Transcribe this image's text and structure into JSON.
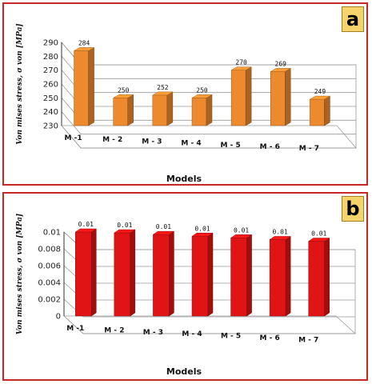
{
  "chart_data": [
    {
      "type": "bar",
      "panel_label": "a",
      "categories": [
        "M -1",
        "M - 2",
        "M - 3",
        "M - 4",
        "M - 5",
        "M - 6",
        "M - 7"
      ],
      "values": [
        284,
        250,
        252,
        250,
        270,
        269,
        249
      ],
      "data_labels": [
        "284",
        "250",
        "252",
        "250",
        "270",
        "269",
        "249"
      ],
      "xlabel": "Models",
      "ylabel": "Von mises stress, σ von [MPa]",
      "ylim": [
        230,
        290
      ],
      "yticks": [
        "230",
        "240",
        "250",
        "260",
        "270",
        "280",
        "290"
      ],
      "bar_color": "#ee8a2e",
      "grid": true
    },
    {
      "type": "bar",
      "panel_label": "b",
      "categories": [
        "M -1",
        "M - 2",
        "M - 3",
        "M - 4",
        "M - 5",
        "M - 6",
        "M - 7"
      ],
      "values": [
        0.01,
        0.0099,
        0.0097,
        0.0095,
        0.0093,
        0.0091,
        0.0089
      ],
      "data_labels": [
        "0.01",
        "0.01",
        "0.01",
        "0.01",
        "0.01",
        "0.01",
        "0.01"
      ],
      "xlabel": "Models",
      "ylabel": "Von mises stress, σ von [MPa]",
      "ylim": [
        0,
        0.01
      ],
      "yticks": [
        "0",
        "0.002",
        "0.004",
        "0.006",
        "0.008",
        "0.01"
      ],
      "bar_color": "#e01414",
      "grid": true
    }
  ]
}
